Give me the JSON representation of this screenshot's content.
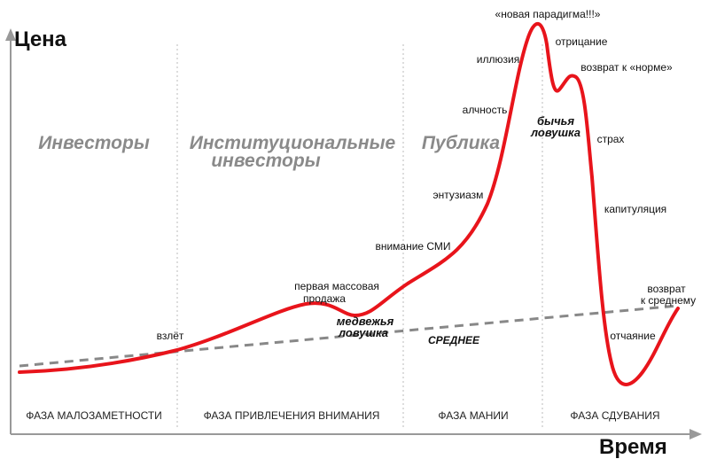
{
  "axes": {
    "y_label": "Цена",
    "x_label": "Время"
  },
  "groups": [
    [
      "Инвесторы"
    ],
    [
      "Институциональные",
      "инвесторы"
    ],
    [
      "Публика"
    ]
  ],
  "phases": [
    "ФАЗА МАЛОЗАМЕТНОСТИ",
    "ФАЗА ПРИВЛЕЧЕНИЯ ВНИМАНИЯ",
    "ФАЗА МАНИИ",
    "ФАЗА СДУВАНИЯ"
  ],
  "mean_label": "СРЕДНЕЕ",
  "annotations": [
    [
      "взлёт"
    ],
    [
      "первая массовая",
      "продажа"
    ],
    [
      "медвежья",
      "ловушка"
    ],
    [
      "внимание СМИ"
    ],
    [
      "энтузиазм"
    ],
    [
      "алчность"
    ],
    [
      "иллюзия"
    ],
    [
      "«новая парадигма!!!»"
    ],
    [
      "отрицание"
    ],
    [
      "бычья",
      "ловушка"
    ],
    [
      "возврат к «норме»"
    ],
    [
      "страх"
    ],
    [
      "капитуляция"
    ],
    [
      "возврат",
      "к среднему"
    ],
    [
      "отчаяние"
    ]
  ]
}
